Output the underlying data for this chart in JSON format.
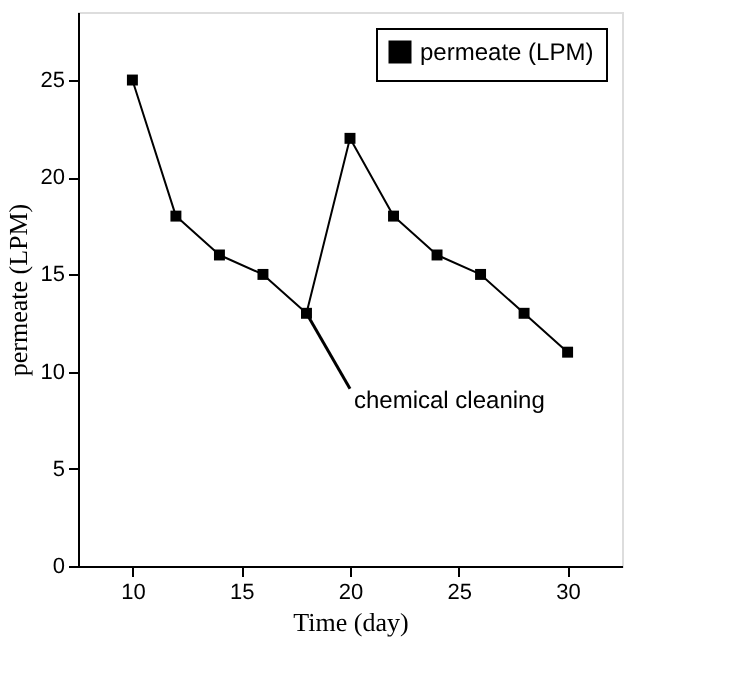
{
  "chart_data": {
    "type": "line",
    "xlabel": "Time (day)",
    "ylabel": "permeate (LPM)",
    "x": [
      10,
      12,
      14,
      16,
      18,
      20,
      22,
      24,
      26,
      28,
      30
    ],
    "series": [
      {
        "name": "permeate (LPM)",
        "color": "#000000",
        "values": [
          25,
          18,
          16,
          15,
          13,
          22,
          18,
          16,
          15,
          13,
          11
        ]
      }
    ],
    "xlim": [
      7.5,
      32.5
    ],
    "ylim": [
      0,
      28.5
    ],
    "xticks": [
      10,
      15,
      20,
      25,
      30
    ],
    "yticks": [
      0,
      5,
      10,
      15,
      20,
      25
    ],
    "annotations": [
      {
        "text": "chemical cleaning",
        "x": 18,
        "y": 13
      }
    ],
    "marker": "square",
    "line_style": "solid",
    "grid": false,
    "legend": "top right"
  }
}
